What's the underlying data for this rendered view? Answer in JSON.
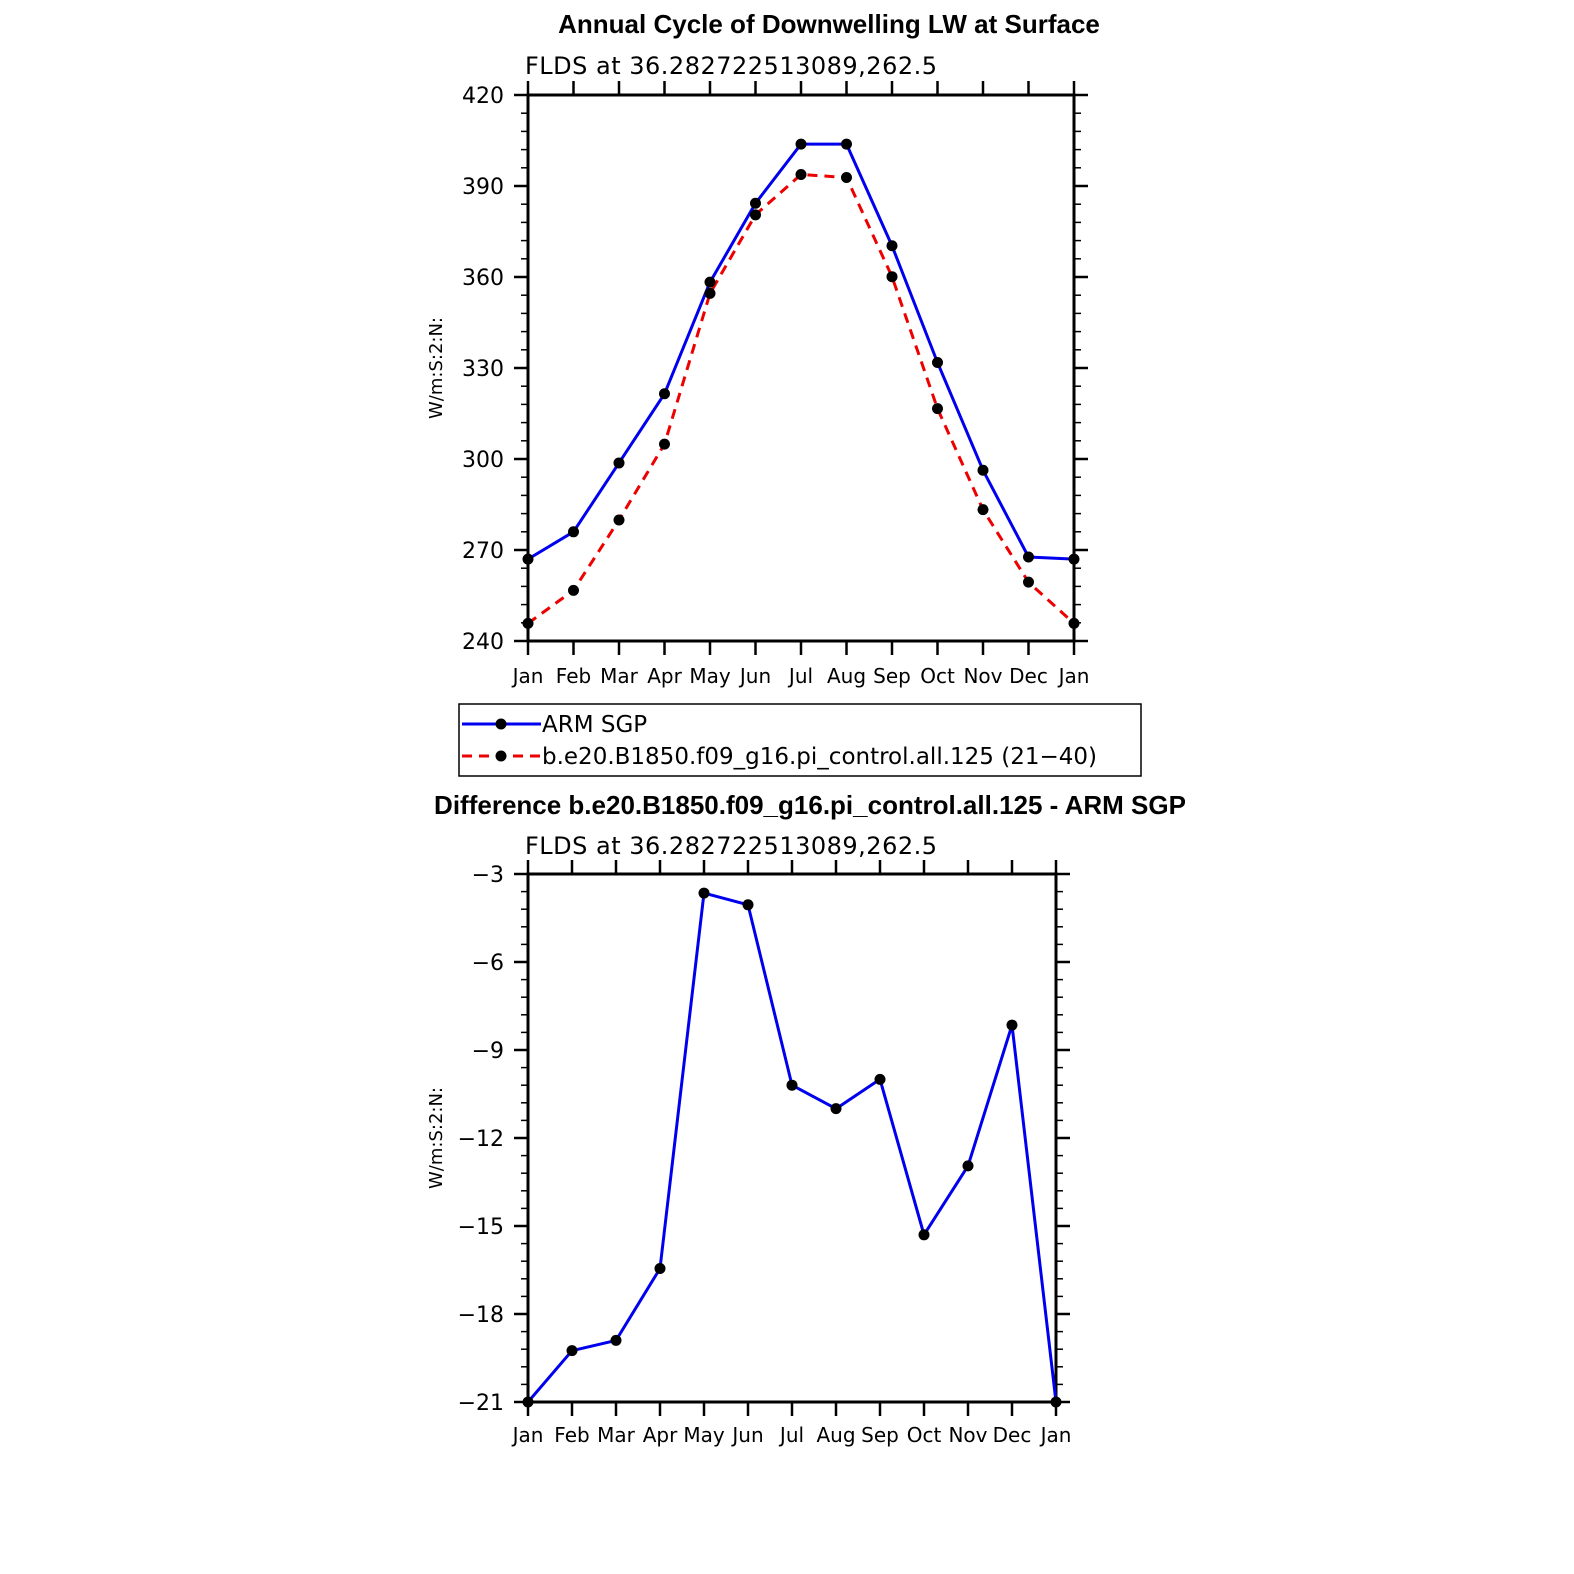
{
  "colors": {
    "series_primary": "#0000ee",
    "series_secondary": "#ee0000",
    "marker": "#000000",
    "axis": "#000000",
    "background": "#ffffff"
  },
  "chart_data": [
    {
      "type": "line",
      "title": "Annual Cycle of Downwelling LW at Surface",
      "subtitle": "FLDS at 36.282722513089,262.5",
      "xlabel": "",
      "ylabel": "W/m:S:2:N:",
      "categories": [
        "Jan",
        "Feb",
        "Mar",
        "Apr",
        "May",
        "Jun",
        "Jul",
        "Aug",
        "Sep",
        "Oct",
        "Nov",
        "Dec",
        "Jan"
      ],
      "ylim": [
        240,
        420
      ],
      "yticks": [
        240,
        270,
        300,
        330,
        360,
        390,
        420
      ],
      "ytick_labels": [
        "240",
        "270",
        "300",
        "330",
        "360",
        "390",
        "420"
      ],
      "grid": false,
      "legend_position": "below",
      "series": [
        {
          "name": "ARM SGP",
          "style": "solid",
          "color": "#0000ee",
          "values": [
            267.0,
            276.0,
            298.7,
            321.5,
            358.3,
            384.3,
            403.8,
            403.8,
            370.3,
            331.8,
            296.3,
            267.7,
            267.0
          ]
        },
        {
          "name": "b.e20.B1850.f09_g16.pi_control.all.125 (21−40)",
          "style": "dashed",
          "color": "#ee0000",
          "values": [
            245.8,
            256.7,
            279.9,
            304.9,
            354.6,
            380.5,
            393.8,
            392.8,
            360.1,
            316.6,
            283.3,
            259.4,
            245.8
          ]
        }
      ]
    },
    {
      "type": "line",
      "title": "Difference b.e20.B1850.f09_g16.pi_control.all.125 - ARM SGP",
      "subtitle": "FLDS at 36.282722513089,262.5",
      "xlabel": "",
      "ylabel": "W/m:S:2:N:",
      "categories": [
        "Jan",
        "Feb",
        "Mar",
        "Apr",
        "May",
        "Jun",
        "Jul",
        "Aug",
        "Sep",
        "Oct",
        "Nov",
        "Dec",
        "Jan"
      ],
      "ylim": [
        -21,
        -3
      ],
      "yticks": [
        -21,
        -18,
        -15,
        -12,
        -9,
        -6,
        -3
      ],
      "ytick_labels": [
        "−21",
        "−18",
        "−15",
        "−12",
        "−9",
        "−6",
        "−3"
      ],
      "grid": false,
      "series": [
        {
          "color": "#0000ee",
          "values": [
            -21.0,
            -19.25,
            -18.9,
            -16.45,
            -3.65,
            -4.05,
            -10.2,
            -11.0,
            -10.0,
            -15.3,
            -12.95,
            -8.15,
            -21.0
          ]
        }
      ]
    }
  ]
}
